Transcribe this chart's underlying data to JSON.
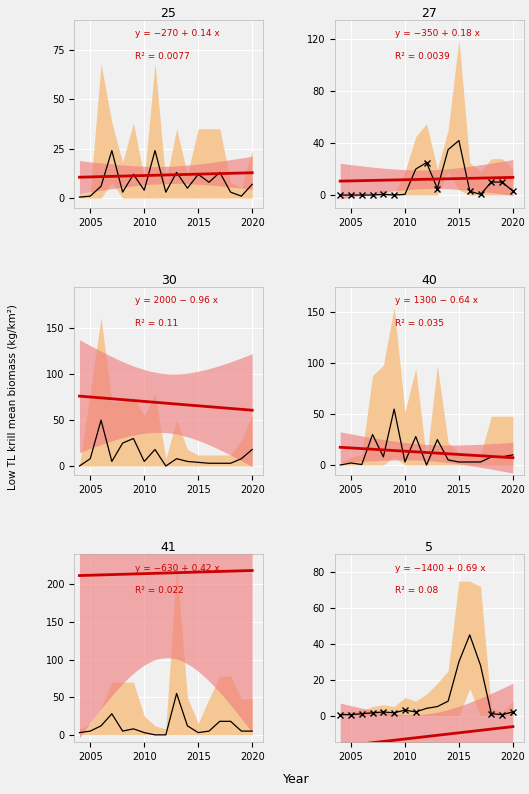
{
  "panels": [
    {
      "title": "25",
      "eq_line1": "y = −270 + 0.14 x",
      "eq_line2": "R² = 0.0077",
      "slope": 0.14,
      "intercept": -270,
      "ylim": [
        -5,
        90
      ],
      "yticks": [
        0,
        25,
        50,
        75
      ],
      "years": [
        2004,
        2005,
        2006,
        2007,
        2008,
        2009,
        2010,
        2011,
        2012,
        2013,
        2014,
        2015,
        2016,
        2017,
        2018,
        2019,
        2020
      ],
      "mean": [
        0.5,
        1.0,
        6.0,
        24.0,
        3.0,
        12.0,
        4.0,
        24.0,
        3.0,
        13.0,
        5.0,
        12.0,
        8.0,
        13.0,
        3.0,
        1.0,
        7.0
      ],
      "sd_upper": [
        2.0,
        3.0,
        68.0,
        38.0,
        18.0,
        38.0,
        10.0,
        68.0,
        8.0,
        35.0,
        12.0,
        35.0,
        35.0,
        35.0,
        8.0,
        5.0,
        24.0
      ],
      "sd_lower": [
        0.0,
        0.0,
        0.0,
        8.0,
        0.0,
        0.0,
        0.0,
        0.0,
        0.0,
        0.0,
        0.0,
        0.0,
        0.0,
        0.0,
        0.0,
        0.0,
        0.0
      ],
      "ci_upper_offset": [
        8,
        8,
        8,
        8,
        8,
        8,
        7,
        7,
        7,
        6,
        6,
        6,
        5,
        5,
        5,
        4,
        4
      ],
      "ci_lower_offset": [
        8,
        8,
        8,
        8,
        8,
        8,
        7,
        7,
        7,
        6,
        6,
        6,
        5,
        5,
        5,
        4,
        4
      ],
      "low_sample": []
    },
    {
      "title": "27",
      "eq_line1": "y = −350 + 0.18 x",
      "eq_line2": "R² = 0.0039",
      "slope": 0.18,
      "intercept": -350,
      "ylim": [
        -10,
        135
      ],
      "yticks": [
        0,
        40,
        80,
        120
      ],
      "years": [
        2004,
        2005,
        2006,
        2007,
        2008,
        2009,
        2010,
        2011,
        2012,
        2013,
        2014,
        2015,
        2016,
        2017,
        2018,
        2019,
        2020
      ],
      "mean": [
        0.0,
        0.0,
        0.0,
        0.0,
        0.5,
        0.0,
        0.5,
        20.0,
        25.0,
        5.0,
        35.0,
        42.0,
        3.0,
        0.5,
        10.0,
        10.0,
        3.0
      ],
      "sd_upper": [
        0.5,
        0.5,
        0.5,
        0.5,
        4.0,
        0.5,
        18.0,
        45.0,
        55.0,
        20.0,
        50.0,
        120.0,
        25.0,
        18.0,
        28.0,
        28.0,
        20.0
      ],
      "sd_lower": [
        0.0,
        0.0,
        0.0,
        0.0,
        0.0,
        0.0,
        0.0,
        0.0,
        0.0,
        0.0,
        18.0,
        4.0,
        0.0,
        0.0,
        0.0,
        0.0,
        0.0
      ],
      "ci_upper_offset": [
        10,
        10,
        10,
        10,
        10,
        10,
        10,
        9,
        9,
        8,
        8,
        7,
        7,
        6,
        6,
        5,
        5
      ],
      "ci_lower_offset": [
        10,
        10,
        10,
        10,
        10,
        10,
        10,
        9,
        9,
        8,
        8,
        7,
        7,
        6,
        6,
        5,
        5
      ],
      "low_sample": [
        2004,
        2005,
        2006,
        2007,
        2008,
        2009,
        2012,
        2013,
        2016,
        2017,
        2018,
        2019,
        2020
      ]
    },
    {
      "title": "30",
      "eq_line1": "y = 2000 − 0.96 x",
      "eq_line2": "R² = 0.11",
      "slope": -0.96,
      "intercept": 2000,
      "ylim": [
        -10,
        195
      ],
      "yticks": [
        0,
        50,
        100,
        150
      ],
      "years": [
        2004,
        2005,
        2006,
        2007,
        2008,
        2009,
        2010,
        2011,
        2012,
        2013,
        2014,
        2015,
        2016,
        2017,
        2018,
        2019,
        2020
      ],
      "mean": [
        0.0,
        8.0,
        50.0,
        5.0,
        25.0,
        30.0,
        5.0,
        18.0,
        0.0,
        8.0,
        5.0,
        4.0,
        3.0,
        3.0,
        3.0,
        8.0,
        18.0
      ],
      "sd_upper": [
        1.0,
        80.0,
        162.0,
        70.0,
        70.0,
        75.0,
        55.0,
        78.0,
        8.0,
        50.0,
        18.0,
        12.0,
        12.0,
        12.0,
        12.0,
        28.0,
        55.0
      ],
      "sd_lower": [
        0.0,
        0.0,
        0.0,
        0.0,
        0.0,
        0.0,
        0.0,
        0.0,
        0.0,
        0.0,
        0.0,
        0.0,
        0.0,
        0.0,
        0.0,
        0.0,
        0.0
      ],
      "ci_upper_offset": [
        12,
        11,
        11,
        10,
        10,
        9,
        9,
        8,
        8,
        7,
        6,
        6,
        5,
        5,
        4,
        4,
        4
      ],
      "ci_lower_offset": [
        12,
        11,
        11,
        10,
        10,
        9,
        9,
        8,
        8,
        7,
        6,
        6,
        5,
        5,
        4,
        4,
        4
      ],
      "low_sample": []
    },
    {
      "title": "40",
      "eq_line1": "y = 1300 − 0.64 x",
      "eq_line2": "R² = 0.035",
      "slope": -0.64,
      "intercept": 1300,
      "ylim": [
        -10,
        175
      ],
      "yticks": [
        0,
        50,
        100,
        150
      ],
      "years": [
        2004,
        2005,
        2006,
        2007,
        2008,
        2009,
        2010,
        2011,
        2012,
        2013,
        2014,
        2015,
        2016,
        2017,
        2018,
        2019,
        2020
      ],
      "mean": [
        0.0,
        2.0,
        0.5,
        30.0,
        8.0,
        55.0,
        3.0,
        28.0,
        0.0,
        25.0,
        5.0,
        3.0,
        3.0,
        3.0,
        8.0,
        8.0,
        10.0
      ],
      "sd_upper": [
        2.0,
        8.0,
        10.0,
        88.0,
        98.0,
        155.0,
        52.0,
        95.0,
        5.0,
        98.0,
        22.0,
        12.0,
        12.0,
        10.0,
        48.0,
        48.0,
        48.0
      ],
      "sd_lower": [
        0.0,
        0.0,
        0.0,
        0.0,
        0.0,
        8.0,
        0.0,
        0.0,
        0.0,
        0.0,
        0.0,
        0.0,
        0.0,
        0.0,
        0.0,
        0.0,
        0.0
      ],
      "ci_upper_offset": [
        12,
        11,
        11,
        10,
        10,
        9,
        9,
        8,
        8,
        7,
        7,
        6,
        6,
        6,
        5,
        5,
        5
      ],
      "ci_lower_offset": [
        12,
        11,
        11,
        10,
        10,
        9,
        9,
        8,
        8,
        7,
        7,
        6,
        6,
        6,
        5,
        5,
        5
      ],
      "low_sample": []
    },
    {
      "title": "41",
      "eq_line1": "y = −630 + 0.42 x",
      "eq_line2": "R² = 0.022",
      "slope": 0.42,
      "intercept": -630,
      "ylim": [
        -10,
        240
      ],
      "yticks": [
        0,
        50,
        100,
        150,
        200
      ],
      "years": [
        2004,
        2005,
        2006,
        2007,
        2008,
        2009,
        2010,
        2011,
        2012,
        2013,
        2014,
        2015,
        2016,
        2017,
        2018,
        2019,
        2020
      ],
      "mean": [
        3.0,
        5.0,
        12.0,
        28.0,
        5.0,
        8.0,
        3.0,
        0.0,
        0.0,
        55.0,
        12.0,
        3.0,
        5.0,
        18.0,
        18.0,
        5.0,
        5.0
      ],
      "sd_upper": [
        8.0,
        15.0,
        35.0,
        70.0,
        70.0,
        70.0,
        25.0,
        12.0,
        8.0,
        225.0,
        50.0,
        15.0,
        48.0,
        78.0,
        78.0,
        48.0,
        48.0
      ],
      "sd_lower": [
        0.0,
        0.0,
        0.0,
        0.0,
        0.0,
        0.0,
        0.0,
        0.0,
        0.0,
        0.0,
        0.0,
        0.0,
        0.0,
        0.0,
        0.0,
        0.0,
        0.0
      ],
      "ci_upper_offset": [
        10,
        10,
        9,
        9,
        9,
        8,
        8,
        8,
        8,
        7,
        7,
        7,
        7,
        6,
        6,
        6,
        6
      ],
      "ci_lower_offset": [
        10,
        10,
        9,
        9,
        9,
        8,
        8,
        8,
        8,
        7,
        7,
        7,
        7,
        6,
        6,
        6,
        6
      ],
      "low_sample": []
    },
    {
      "title": "5",
      "eq_line1": "y = −1400 + 0.69 x",
      "eq_line2": "R² = 0.08",
      "slope": 0.69,
      "intercept": -1400,
      "ylim": [
        -15,
        90
      ],
      "yticks": [
        0,
        20,
        40,
        60,
        80
      ],
      "years": [
        2004,
        2005,
        2006,
        2007,
        2008,
        2009,
        2010,
        2011,
        2012,
        2013,
        2014,
        2015,
        2016,
        2017,
        2018,
        2019,
        2020
      ],
      "mean": [
        0.5,
        0.5,
        1.0,
        1.5,
        2.0,
        1.5,
        3.0,
        2.0,
        4.0,
        5.0,
        8.0,
        30.0,
        45.0,
        28.0,
        1.0,
        0.5,
        2.0
      ],
      "sd_upper": [
        2.0,
        2.0,
        3.0,
        5.0,
        6.0,
        5.0,
        10.0,
        8.0,
        12.0,
        18.0,
        25.0,
        75.0,
        75.0,
        72.0,
        4.0,
        2.0,
        8.0
      ],
      "sd_lower": [
        0.0,
        0.0,
        0.0,
        0.0,
        0.0,
        0.0,
        0.0,
        0.0,
        0.0,
        0.0,
        0.0,
        0.0,
        15.0,
        0.0,
        0.0,
        0.0,
        0.0
      ],
      "ci_upper_offset": [
        8,
        8,
        9,
        9,
        10,
        10,
        11,
        11,
        12,
        12,
        13,
        14,
        14,
        15,
        15,
        16,
        17
      ],
      "ci_lower_offset": [
        8,
        8,
        9,
        9,
        10,
        10,
        11,
        11,
        12,
        12,
        13,
        14,
        14,
        15,
        15,
        16,
        17
      ],
      "low_sample": [
        2004,
        2005,
        2006,
        2007,
        2008,
        2009,
        2010,
        2011,
        2018,
        2019,
        2020
      ]
    }
  ],
  "ylabel": "Low TL krill mean biomass (kg/km²)",
  "xlabel": "Year",
  "sd_color": "#F5C38A",
  "ci_color": "#F08080",
  "trend_color": "#CC0000",
  "line_color": "#000000",
  "eq_color": "#CC0000",
  "background_color": "#F0F0F0",
  "grid_color": "#FFFFFF",
  "xticks": [
    2005,
    2010,
    2015,
    2020
  ]
}
